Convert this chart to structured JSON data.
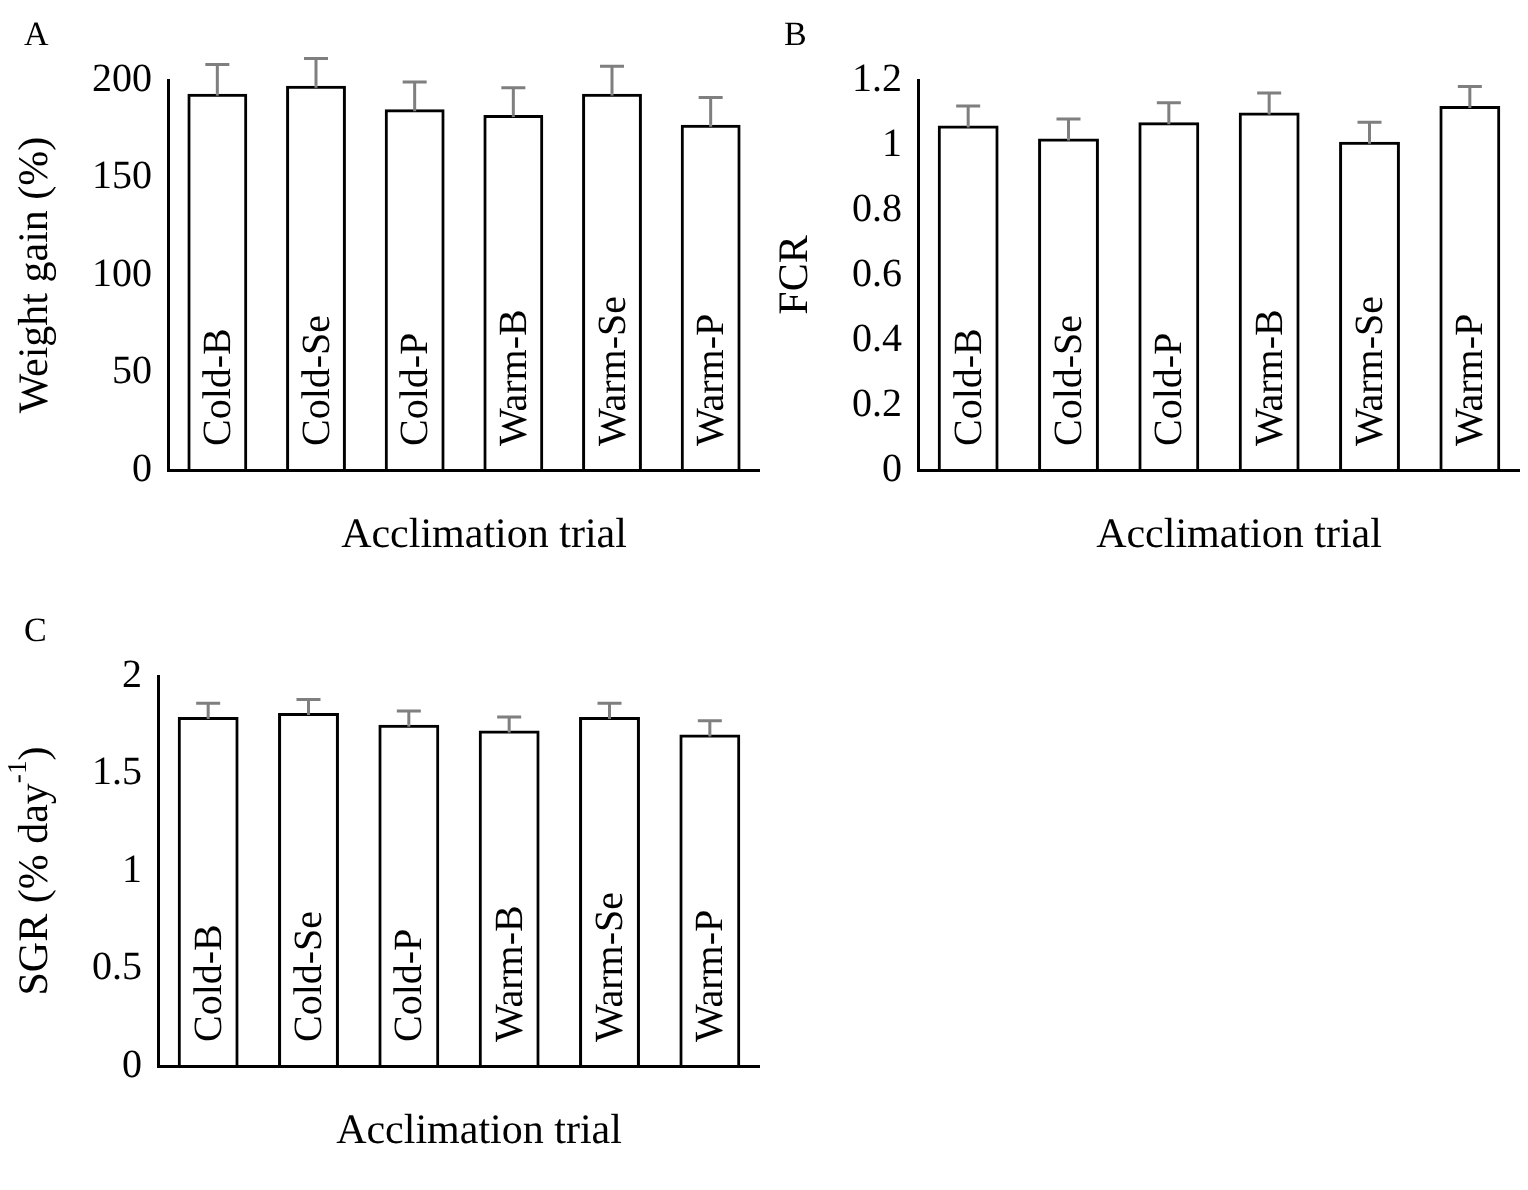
{
  "chart_data": [
    {
      "type": "bar",
      "title": "A",
      "xlabel": "Acclimation trial",
      "ylabel": "Weight gain (%)",
      "categories": [
        "Cold-B",
        "Cold-Se",
        "Cold-P",
        "Warm-B",
        "Warm-Se",
        "Warm-P"
      ],
      "values": [
        193,
        197,
        185,
        182,
        193,
        177
      ],
      "errors": [
        15,
        14,
        14,
        14,
        14,
        14
      ],
      "color": "#000000",
      "ylim": [
        0,
        200
      ],
      "yticks": [
        0,
        50,
        100,
        150,
        200
      ],
      "grid": false,
      "legend": false
    },
    {
      "type": "bar",
      "title": "B",
      "xlabel": "Acclimation trial",
      "ylabel": "FCR",
      "categories": [
        "Cold-B",
        "Cold-Se",
        "Cold-P",
        "Warm-B",
        "Warm-Se",
        "Warm-P"
      ],
      "values": [
        1.06,
        1.02,
        1.07,
        1.1,
        1.01,
        1.12
      ],
      "errors": [
        0.06,
        0.06,
        0.06,
        0.06,
        0.06,
        0.06
      ],
      "color": "#000000",
      "ylim": [
        0,
        1.2
      ],
      "yticks": [
        0,
        {
          "value": 0.2,
          "label": "0.2"
        },
        {
          "value": 0.4,
          "label": "0.4"
        },
        {
          "value": 0.6,
          "label": "0.6"
        },
        {
          "value": 0.8,
          "label": "0.8"
        },
        1,
        {
          "value": 1.2,
          "label": "1.2"
        }
      ],
      "grid": false,
      "legend": false
    },
    {
      "type": "bar",
      "title": "C",
      "xlabel": "Acclimation trial",
      "ylabel": "SGR (% day$^{-1}$)",
      "categories": [
        "Cold-B",
        "Cold-Se",
        "Cold-P",
        "Warm-B",
        "Warm-Se",
        "Warm-P"
      ],
      "values": [
        1.79,
        1.81,
        1.75,
        1.72,
        1.79,
        1.7
      ],
      "errors": [
        0.07,
        0.07,
        0.07,
        0.07,
        0.07,
        0.07
      ],
      "color": "#000000",
      "ylim": [
        0,
        2
      ],
      "yticks": [
        0,
        {
          "value": 0.5,
          "label": "0.5"
        },
        1,
        {
          "value": 1.5,
          "label": "1.5"
        },
        2
      ],
      "grid": false,
      "legend": false
    }
  ]
}
